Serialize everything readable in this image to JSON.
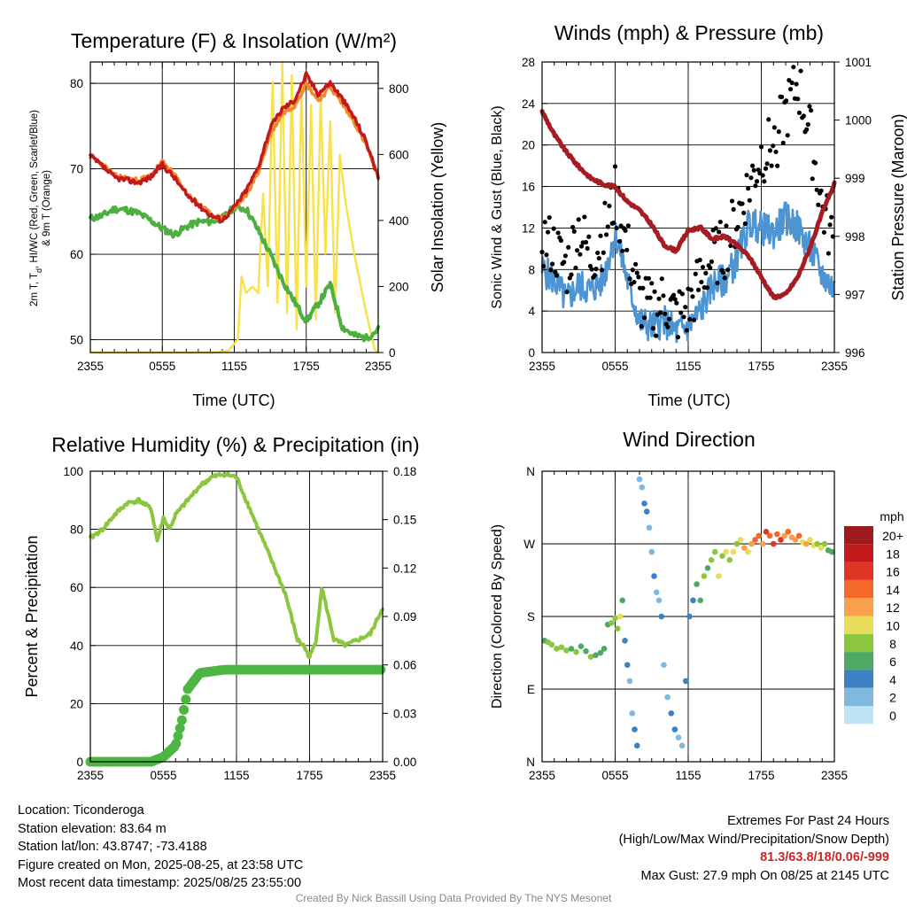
{
  "colors": {
    "red": "#c3191c",
    "orange": "#f28a2b",
    "green": "#4caf3f",
    "yellow": "#f8e14a",
    "blue": "#4d94d3",
    "maroon": "#a51d22",
    "rh": "#8cc63f",
    "precip": "#4db542",
    "grid": "#000000"
  },
  "chart_data": [
    {
      "type": "line",
      "title": "Temperature (F) & Insolation (W/m²)",
      "xlabel": "Time (UTC)",
      "ylabel": "2m T, Td, HI/WC (Red, Green, Scarlet/Blue) & 9m T (Orange)",
      "ylabel_line1": "2m T, T",
      "ylabel_sub": "d",
      "ylabel_line1b": ", HI/WC (Red, Green, Scarlet/Blue)",
      "ylabel_line2": "& 9m T (Orange)",
      "y2label": "Solar Insolation (Yellow)",
      "x_ticks": [
        "2355",
        "0555",
        "1155",
        "1755",
        "2355"
      ],
      "ylim": [
        48.5,
        82.5
      ],
      "y_ticks": [
        50,
        60,
        70,
        80
      ],
      "y2lim": [
        0,
        880
      ],
      "y2_ticks": [
        0,
        200,
        400,
        600,
        800
      ],
      "grid": true,
      "series": [
        {
          "name": "2m T",
          "color": "red",
          "hours": [
            0,
            1,
            2,
            3,
            4,
            5,
            6,
            7,
            8,
            9,
            10,
            11,
            12,
            13,
            14,
            15,
            16,
            17,
            18,
            19,
            20,
            21,
            22,
            23,
            24
          ],
          "values": [
            71.5,
            70.3,
            69,
            68.7,
            68.4,
            69,
            70.5,
            69,
            67,
            65.8,
            64.6,
            64,
            65.5,
            67.5,
            70.2,
            74.8,
            77,
            78,
            81,
            78.8,
            80.1,
            78.2,
            76,
            73.2,
            69
          ]
        },
        {
          "name": "9m T",
          "color": "orange",
          "hours": [
            0,
            1,
            2,
            3,
            4,
            5,
            6,
            7,
            8,
            9,
            10,
            11,
            12,
            13,
            14,
            15,
            16,
            17,
            18,
            19,
            20,
            21,
            22,
            23,
            24
          ],
          "values": [
            71.5,
            70.5,
            69.2,
            68.9,
            68.6,
            69.2,
            70.8,
            69.3,
            67.2,
            65.9,
            64.7,
            64.1,
            65.4,
            67,
            69.6,
            74,
            76.5,
            77.4,
            80,
            78,
            79.6,
            77.6,
            75.5,
            72.8,
            69
          ]
        },
        {
          "name": "Td",
          "color": "green",
          "hours": [
            0,
            1,
            2,
            3,
            4,
            5,
            6,
            7,
            8,
            9,
            10,
            11,
            12,
            13,
            14,
            15,
            16,
            17,
            18,
            19,
            20,
            21,
            22,
            23,
            24
          ],
          "values": [
            64.2,
            64.5,
            65.3,
            65.2,
            64.8,
            64,
            63,
            62.3,
            63.2,
            63.8,
            63.8,
            64.2,
            65.5,
            65.3,
            62.8,
            60,
            57,
            54.5,
            52.2,
            54.2,
            56.5,
            51.5,
            50.5,
            50.2,
            51.2
          ]
        },
        {
          "name": "Solar Insolation",
          "color": "yellow",
          "hours": [
            0,
            10.5,
            11.5,
            12.3,
            12.6,
            13,
            13.5,
            14,
            14.4,
            14.8,
            15.2,
            15.6,
            16,
            16.4,
            16.8,
            17.2,
            17.6,
            18,
            18.4,
            18.8,
            19.2,
            19.6,
            20,
            20.4,
            20.8,
            21.3,
            22,
            23,
            23.7,
            24
          ],
          "values": [
            0,
            0,
            5,
            40,
            230,
            180,
            200,
            180,
            480,
            200,
            820,
            150,
            880,
            120,
            840,
            70,
            800,
            200,
            750,
            100,
            780,
            300,
            700,
            120,
            600,
            450,
            300,
            120,
            10,
            0
          ]
        }
      ]
    },
    {
      "type": "line",
      "title": "Winds (mph) & Pressure (mb)",
      "xlabel": "Time (UTC)",
      "ylabel": "Sonic Wind & Gust (Blue, Black)",
      "y2label": "Station Pressure (Maroon)",
      "x_ticks": [
        "2355",
        "0555",
        "1155",
        "1755",
        "2355"
      ],
      "ylim": [
        0,
        28
      ],
      "y_ticks": [
        0,
        4,
        8,
        12,
        16,
        20,
        24,
        28
      ],
      "y2lim": [
        996,
        1001
      ],
      "y2_ticks": [
        996,
        997,
        998,
        999,
        1000,
        1001
      ],
      "grid": true,
      "series": [
        {
          "name": "Sonic Wind",
          "color": "blue",
          "hours": [
            0,
            1,
            2,
            3,
            4,
            5,
            6,
            7,
            8,
            9,
            10,
            11,
            12,
            13,
            14,
            15,
            16,
            17,
            18,
            19,
            20,
            21,
            22,
            23,
            24
          ],
          "values": [
            8,
            7,
            5,
            6.5,
            6,
            7,
            11.5,
            7,
            3,
            2.5,
            3,
            2,
            2.5,
            4,
            6.5,
            7,
            9,
            12.5,
            12,
            11.5,
            13,
            12,
            10,
            7.5,
            6
          ]
        },
        {
          "name": "Gust",
          "color": "black",
          "hours": [
            0,
            1,
            2,
            3,
            4,
            5,
            6,
            7,
            8,
            9,
            10,
            11,
            12,
            13,
            14,
            15,
            16,
            17,
            18,
            19,
            20,
            21,
            22,
            23,
            24
          ],
          "values": [
            11,
            10,
            8,
            12,
            9,
            11,
            15,
            10,
            5,
            4,
            5,
            3.5,
            4,
            7,
            9,
            10,
            13,
            16,
            19,
            20,
            23,
            26,
            21,
            14,
            10
          ]
        },
        {
          "name": "Station Pressure",
          "color": "maroon",
          "hours": [
            0,
            1,
            2,
            3,
            4,
            5,
            6,
            7,
            8,
            9,
            10,
            11,
            12,
            13,
            14,
            15,
            16,
            17,
            18,
            19,
            20,
            21,
            22,
            23,
            24
          ],
          "values": [
            1000.15,
            999.75,
            999.45,
            999.2,
            999.0,
            998.9,
            998.85,
            998.6,
            998.45,
            998.2,
            997.85,
            997.75,
            998.1,
            998.15,
            997.95,
            998.0,
            997.85,
            997.65,
            997.3,
            996.95,
            997.0,
            997.3,
            997.8,
            998.4,
            998.9
          ]
        }
      ]
    },
    {
      "type": "line",
      "title": "Relative Humidity (%) & Precipitation (in)",
      "xlabel": "",
      "ylabel": "Percent & Precipitation",
      "x_ticks": [
        "2355",
        "0555",
        "1155",
        "1755",
        "2355"
      ],
      "ylim": [
        0,
        100
      ],
      "y_ticks": [
        0,
        20,
        40,
        60,
        80,
        100
      ],
      "y2lim": [
        0,
        0.18
      ],
      "y2_ticks": [
        "0.00",
        "0.03",
        "0.06",
        "0.09",
        "0.12",
        "0.15",
        "0.18"
      ],
      "grid": true,
      "series": [
        {
          "name": "Relative Humidity",
          "color": "rh",
          "hours": [
            0,
            1,
            2,
            3,
            4,
            5,
            5.5,
            6,
            6.5,
            7,
            8,
            9,
            10,
            11,
            12,
            13,
            14,
            15,
            16,
            16.5,
            17,
            17.5,
            18,
            18.5,
            19,
            20,
            21,
            22,
            23,
            24
          ],
          "values": [
            77,
            80,
            85,
            89,
            90,
            87,
            76,
            84,
            80,
            85,
            90,
            95,
            98,
            99,
            98,
            88,
            78,
            68,
            58,
            50,
            42,
            40,
            36,
            41,
            60,
            42,
            40,
            42,
            44,
            53
          ]
        },
        {
          "name": "Precipitation",
          "color": "precip",
          "hours": [
            0,
            4,
            5,
            6,
            7,
            7.5,
            8,
            8.5,
            9,
            10,
            11,
            12,
            24
          ],
          "values": [
            0,
            0,
            0,
            0.003,
            0.01,
            0.025,
            0.045,
            0.05,
            0.055,
            0.056,
            0.057,
            0.057,
            0.057
          ]
        }
      ]
    },
    {
      "type": "scatter",
      "title": "Wind Direction",
      "ylabel": "Direction (Colored By Speed)",
      "x_ticks": [
        "2355",
        "0555",
        "1155",
        "1755",
        "2355"
      ],
      "y_ticks": [
        "N",
        "E",
        "S",
        "W",
        "N"
      ],
      "ylim": [
        0,
        360
      ],
      "legend": {
        "title": "mph",
        "labels": [
          "20+",
          "18",
          "16",
          "14",
          "12",
          "10",
          "8",
          "6",
          "4",
          "2",
          "0"
        ],
        "colors": [
          "#9e1a1e",
          "#c3191c",
          "#e03424",
          "#f4682c",
          "#f8a04b",
          "#e9dc5a",
          "#8cc63f",
          "#4ea965",
          "#3d80c4",
          "#80b8e0",
          "#c0e4f5"
        ],
        "placement": "right"
      },
      "points_hours": [
        0.2,
        0.5,
        0.8,
        1.2,
        1.6,
        2.0,
        2.4,
        2.8,
        3.2,
        3.6,
        4.0,
        4.4,
        4.8,
        5.1,
        5.4,
        5.7,
        6.0,
        6.2,
        6.4,
        6.6,
        6.8,
        7.0,
        7.2,
        7.4,
        7.6,
        7.8,
        8.0,
        8.2,
        8.4,
        8.6,
        8.8,
        9.0,
        9.2,
        9.4,
        9.6,
        9.8,
        10.0,
        10.3,
        10.6,
        10.9,
        11.2,
        11.5,
        11.8,
        12.1,
        12.4,
        12.7,
        13.0,
        13.3,
        13.6,
        13.9,
        14.2,
        14.5,
        14.8,
        15.1,
        15.4,
        15.7,
        16.0,
        16.3,
        16.6,
        16.9,
        17.2,
        17.5,
        17.8,
        18.1,
        18.4,
        18.7,
        19.0,
        19.3,
        19.6,
        19.9,
        20.2,
        20.5,
        20.8,
        21.1,
        21.4,
        21.7,
        22.0,
        22.3,
        22.6,
        22.9,
        23.2,
        23.5,
        23.8
      ],
      "points_dir": [
        150,
        148,
        145,
        140,
        142,
        138,
        140,
        136,
        143,
        137,
        130,
        132,
        135,
        140,
        170,
        172,
        178,
        165,
        180,
        200,
        150,
        120,
        100,
        60,
        40,
        20,
        350,
        340,
        320,
        310,
        290,
        260,
        230,
        210,
        200,
        180,
        120,
        80,
        60,
        40,
        30,
        20,
        100,
        180,
        200,
        220,
        200,
        230,
        240,
        250,
        260,
        230,
        255,
        260,
        250,
        260,
        270,
        275,
        265,
        260,
        270,
        275,
        280,
        270,
        285,
        280,
        270,
        282,
        275,
        280,
        285,
        278,
        275,
        280,
        272,
        270,
        275,
        268,
        270,
        265,
        270,
        262,
        260
      ],
      "points_speed": [
        6,
        7,
        7,
        8,
        7,
        8,
        6,
        7,
        6,
        5,
        7,
        6,
        5,
        5,
        6,
        8,
        7,
        8,
        9,
        5,
        4,
        3,
        2,
        2,
        3,
        3,
        2,
        2,
        3,
        3,
        2,
        2,
        3,
        2,
        2,
        3,
        2,
        2,
        3,
        3,
        2,
        2,
        3,
        3,
        4,
        5,
        6,
        7,
        6,
        7,
        8,
        9,
        8,
        9,
        7,
        10,
        8,
        10,
        11,
        9,
        12,
        13,
        14,
        12,
        15,
        14,
        16,
        13,
        15,
        12,
        14,
        11,
        12,
        13,
        10,
        11,
        9,
        10,
        8,
        9,
        7,
        6,
        5
      ]
    }
  ],
  "info_left": {
    "location": "Location: Ticonderoga",
    "elevation": "Station elevation: 83.64 m",
    "latlon": "Station lat/lon: 43.8747; -73.4188",
    "created": "Figure created on Mon, 2025-08-25, at 23:58 UTC",
    "recent": "Most recent data timestamp: 2025/08/25 23:55:00"
  },
  "info_right": {
    "title": "Extremes For Past 24 Hours",
    "subtitle": "(High/Low/Max Wind/Precipitation/Snow Depth)",
    "values": "81.3/63.8/18/0.06/-999",
    "gust": "Max Gust: 27.9 mph On 08/25 at 2145 UTC"
  },
  "credit": "Created By Nick Bassill Using Data Provided By The NYS Mesonet"
}
